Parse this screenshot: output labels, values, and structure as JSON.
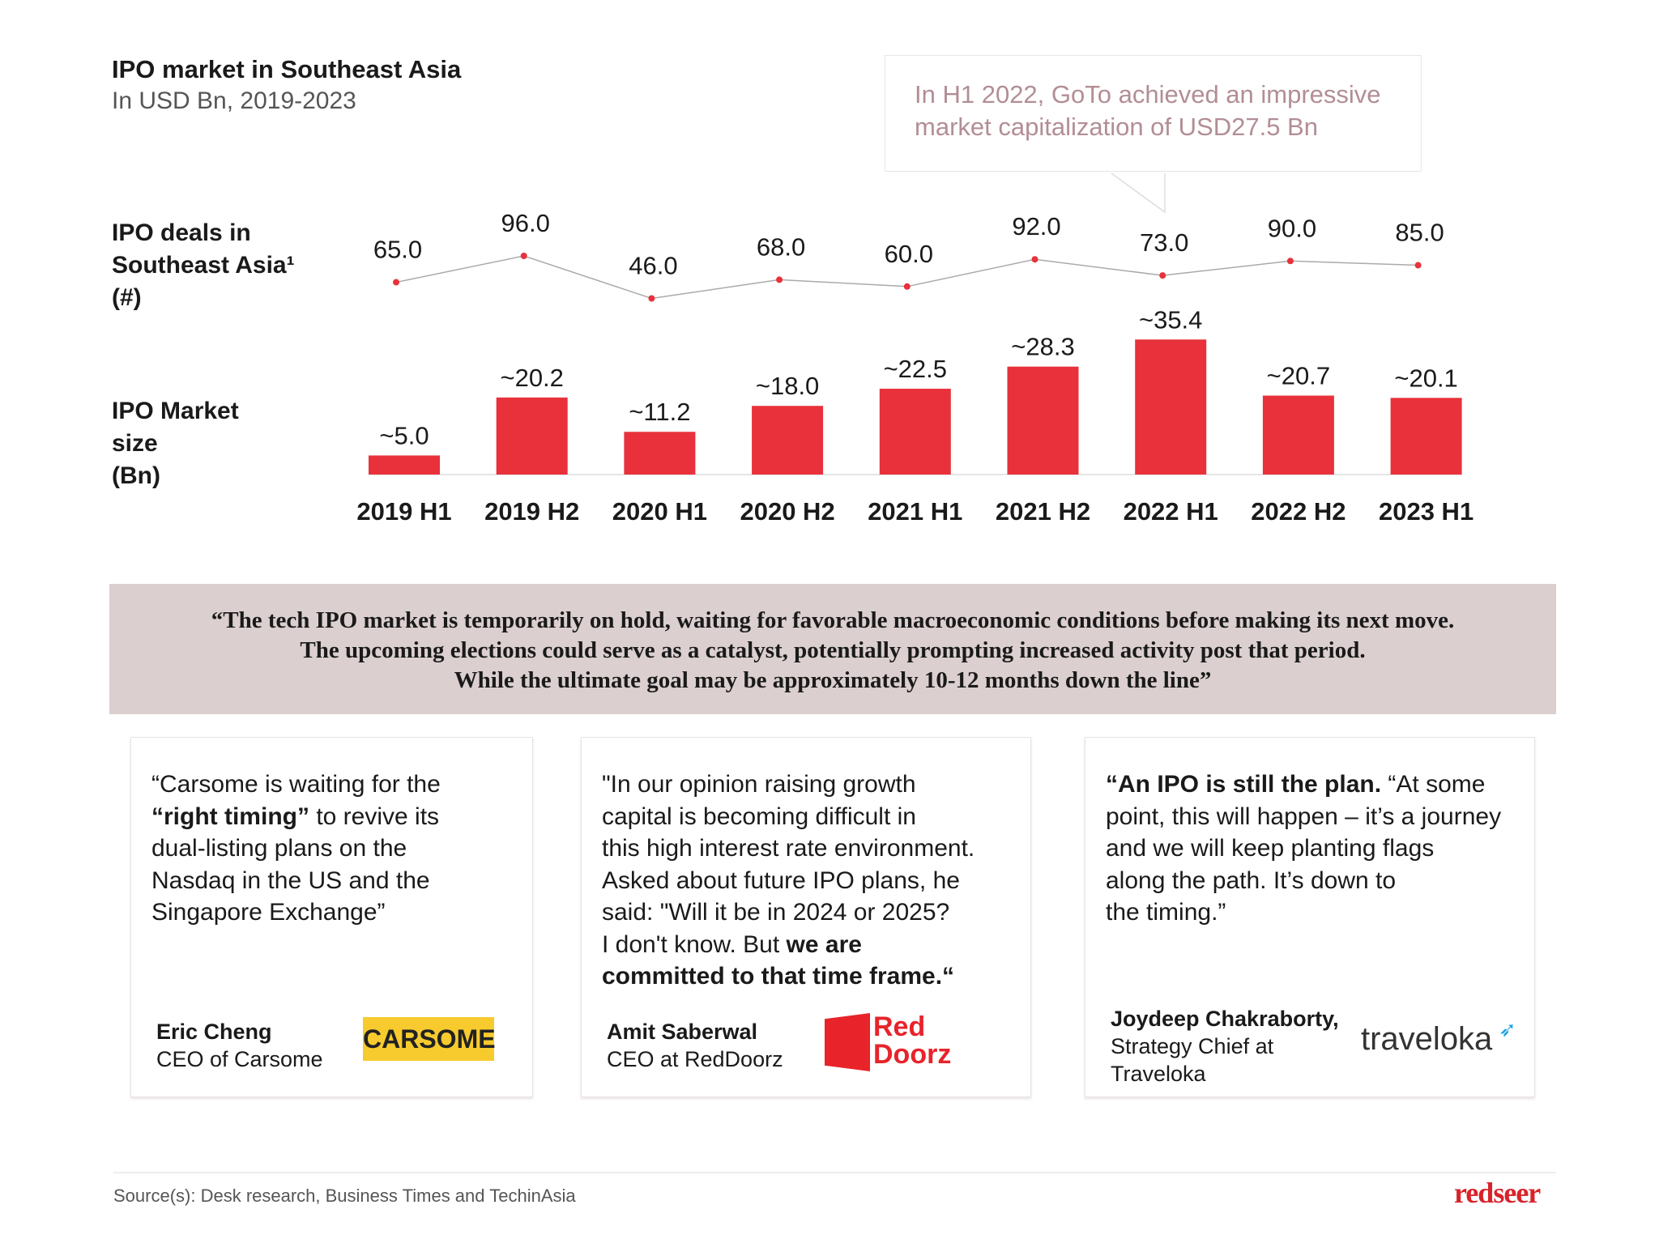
{
  "header": {
    "title": "IPO market in Southeast Asia",
    "subtitle": "In USD Bn, 2019-2023"
  },
  "callout": {
    "text": "In H1 2022, GoTo achieved an impressive market capitalization of USD27.5 Bn"
  },
  "row_labels": {
    "deals": [
      "IPO deals in",
      "Southeast Asia¹",
      "(#)"
    ],
    "size": [
      "IPO Market",
      "size",
      "(Bn)"
    ]
  },
  "chart_data": {
    "type": "bar+line",
    "categories": [
      "2019 H1",
      "2019 H2",
      "2020 H1",
      "2020 H2",
      "2021 H1",
      "2021 H2",
      "2022 H1",
      "2022 H2",
      "2023 H1"
    ],
    "series": [
      {
        "name": "IPO deals in Southeast Asia¹ (#)",
        "type": "line",
        "values": [
          65.0,
          96.0,
          46.0,
          68.0,
          60.0,
          92.0,
          73.0,
          90.0,
          85.0
        ],
        "labels": [
          "65.0",
          "96.0",
          "46.0",
          "68.0",
          "60.0",
          "92.0",
          "73.0",
          "90.0",
          "85.0"
        ],
        "color": "#e8313a"
      },
      {
        "name": "IPO Market size (Bn)",
        "type": "bar",
        "values": [
          5.0,
          20.2,
          11.2,
          18.0,
          22.5,
          28.3,
          35.4,
          20.7,
          20.1
        ],
        "labels": [
          "~5.0",
          "~20.2",
          "~11.2",
          "~18.0",
          "~22.5",
          "~28.3",
          "~35.4",
          "~20.7",
          "~20.1"
        ],
        "color": "#e8313a"
      }
    ],
    "grid": false
  },
  "band": {
    "lines": [
      "“The tech IPO market is temporarily on hold, waiting for favorable macroeconomic conditions before making its next move.",
      "The upcoming elections could serve as a catalyst, potentially prompting increased activity post that period.",
      "While the ultimate goal may be approximately 10-12 months down the line”"
    ]
  },
  "cards": [
    {
      "quote_html": "“Carsome is waiting for the<br><b>“right timing”</b> to revive its<br>dual-listing plans on the<br>Nasdaq in the US and the<br>Singapore Exchange”",
      "name": "Eric Cheng",
      "role": "CEO of Carsome",
      "logo": "CARSOME"
    },
    {
      "quote_html": "\"In our opinion raising growth<br>capital is becoming difficult in<br>this high interest rate environment.<br>Asked about future IPO plans, he<br>said: \"Will it be in 2024 or 2025?<br>I don't know. But <b>we are<br>committed to that time frame.“</b>",
      "name": "Amit Saberwal",
      "role": "CEO at RedDoorz",
      "logo": "Red Doorz"
    },
    {
      "quote_html": "<b>“An IPO is still the plan.</b> “At some<br>point, this will happen – it’s a journey<br>and we will keep planting flags<br>along the path. It’s down to<br>the timing.”",
      "name": "Joydeep Chakraborty,",
      "role": "Strategy Chief at Traveloka",
      "logo": "traveloka"
    }
  ],
  "footer": {
    "source": "Source(s):  Desk research, Business Times and TechinAsia",
    "brand": "redseer"
  }
}
